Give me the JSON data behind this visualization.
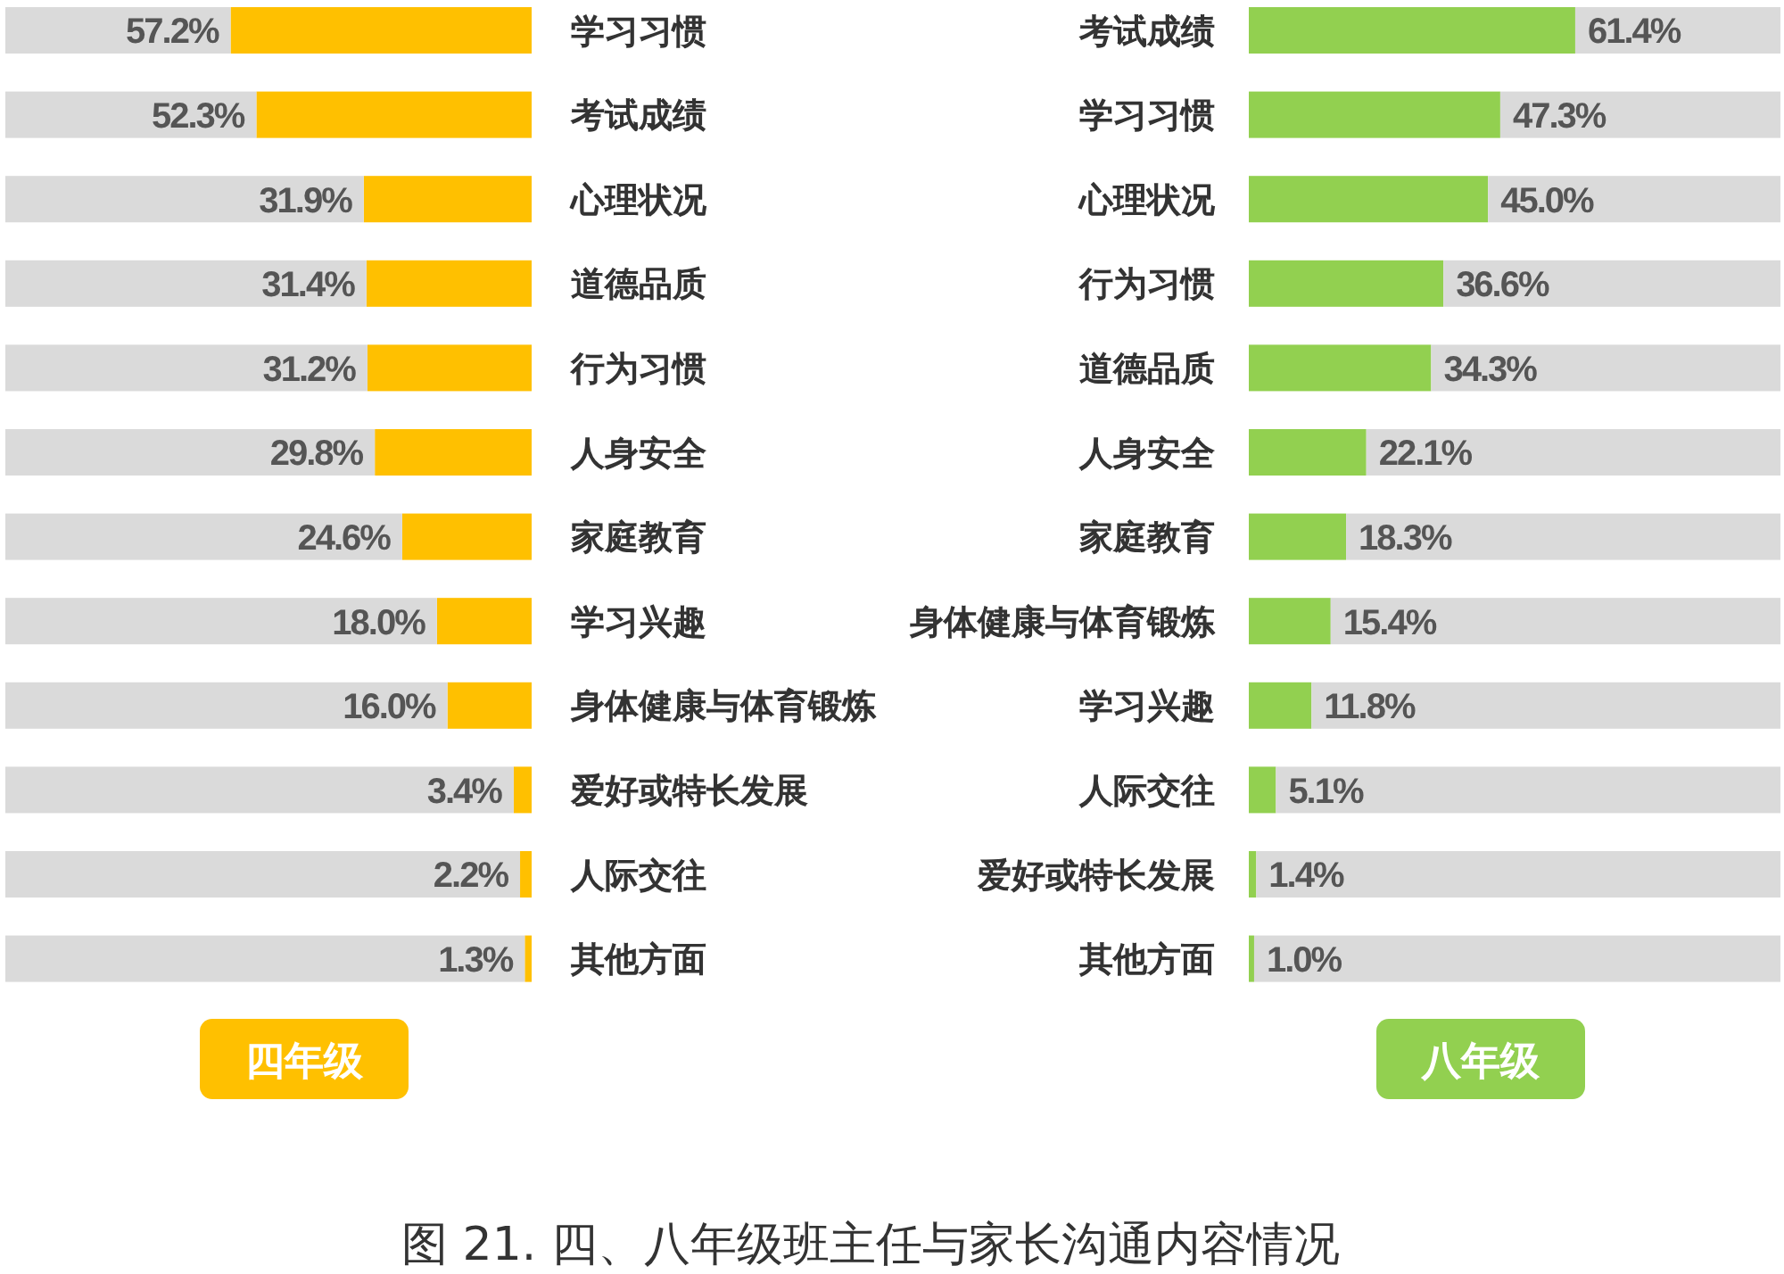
{
  "chart_data": [
    {
      "type": "bar",
      "orientation": "horizontal",
      "stacked": true,
      "title": "四年级",
      "categories": [
        "学习习惯",
        "考试成绩",
        "心理状况",
        "道德品质",
        "行为习惯",
        "人身安全",
        "家庭教育",
        "学习兴趣",
        "身体健康与体育锻炼",
        "爱好或特长发展",
        "人际交往",
        "其他方面"
      ],
      "series": [
        {
          "color": "#ffc000",
          "values": [
            57.2,
            52.3,
            31.9,
            31.4,
            31.2,
            29.8,
            24.6,
            18.0,
            16.0,
            3.4,
            2.2,
            1.3
          ],
          "value_labels": [
            "57.2%",
            "52.3%",
            "31.9%",
            "31.4%",
            "31.2%",
            "29.8%",
            "24.6%",
            "18.0%",
            "16.0%",
            "3.4%",
            "2.2%",
            "1.3%"
          ]
        },
        {
          "color": "#dadada",
          "values": [
            42.8,
            47.7,
            68.1,
            68.6,
            68.8,
            70.2,
            75.4,
            82.0,
            84.0,
            96.6,
            97.8,
            98.7
          ]
        }
      ],
      "xlim": [
        100,
        0
      ],
      "annotations": [
        "图 21. 四、八年级班主任与家长沟通内容情况"
      ]
    },
    {
      "type": "bar",
      "orientation": "horizontal",
      "stacked": true,
      "title": "八年级",
      "categories": [
        "考试成绩",
        "学习习惯",
        "心理状况",
        "行为习惯",
        "道德品质",
        "人身安全",
        "家庭教育",
        "身体健康与体育锻炼",
        "学习兴趣",
        "人际交往",
        "爱好或特长发展",
        "其他方面"
      ],
      "series": [
        {
          "color": "#92d050",
          "values": [
            61.4,
            47.3,
            45.0,
            36.6,
            34.3,
            22.1,
            18.3,
            15.4,
            11.8,
            5.1,
            1.4,
            1.0
          ],
          "value_labels": [
            "61.4%",
            "47.3%",
            "45.0%",
            "36.6%",
            "34.3%",
            "22.1%",
            "18.3%",
            "15.4%",
            "11.8%",
            "5.1%",
            "1.4%",
            "1.0%"
          ]
        },
        {
          "color": "#dadada",
          "values": [
            38.6,
            52.7,
            55.0,
            63.4,
            65.7,
            77.9,
            81.7,
            84.6,
            88.2,
            94.9,
            98.6,
            99.0
          ]
        }
      ],
      "xlim": [
        0,
        100
      ]
    }
  ]
}
